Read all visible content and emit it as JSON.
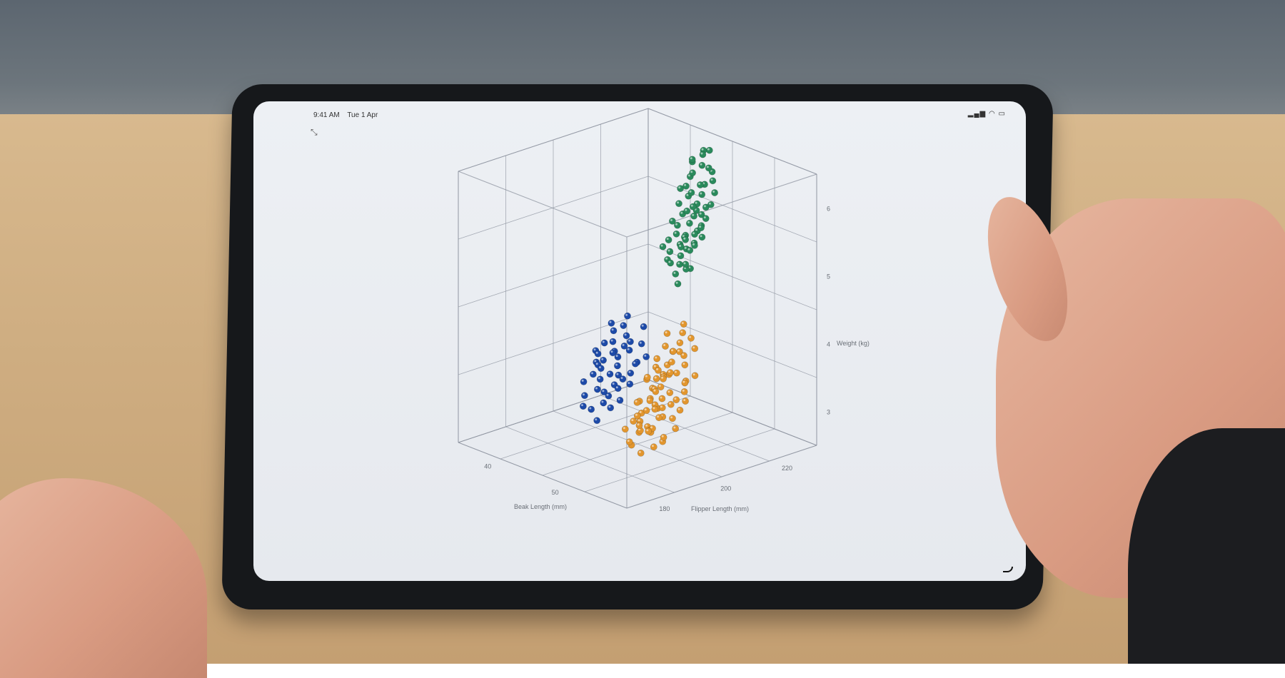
{
  "status_bar": {
    "time": "9:41 AM",
    "date": "Tue 1 Apr"
  },
  "icons": {
    "collapse": "collapse-arrows-icon",
    "signal": "signal-icon",
    "wifi": "wifi-icon",
    "battery": "battery-icon"
  },
  "colors": {
    "screen": "#eceff3",
    "grid": "#8e94a0",
    "species_a": "#e2962e",
    "species_b": "#2a8a5c",
    "species_c": "#1d4aa8"
  },
  "chart_data": {
    "type": "scatter",
    "projection": "3d",
    "axes": {
      "x": {
        "label": "Beak Length (mm)",
        "ticks": [
          "40",
          "50"
        ],
        "range": [
          35,
          60
        ]
      },
      "z": {
        "label": "Flipper Length (mm)",
        "ticks": [
          "180",
          "200",
          "220"
        ],
        "range": [
          170,
          232
        ]
      },
      "y": {
        "label": "Weight (kg)",
        "ticks": [
          "3",
          "4",
          "5",
          "6"
        ],
        "range": [
          2.5,
          6.5
        ]
      }
    },
    "grid": true,
    "series": [
      {
        "color": "#e2962e",
        "points": [
          [
            37.2,
            191,
            3.7
          ],
          [
            38.1,
            186,
            3.6
          ],
          [
            39.5,
            190,
            3.5
          ],
          [
            36.8,
            181,
            3.4
          ],
          [
            40.1,
            195,
            3.9
          ],
          [
            38.9,
            188,
            3.8
          ],
          [
            41.2,
            192,
            3.7
          ],
          [
            37.8,
            184,
            3.3
          ],
          [
            39.0,
            193,
            4.0
          ],
          [
            42.0,
            198,
            4.2
          ],
          [
            36.5,
            185,
            3.2
          ],
          [
            40.6,
            190,
            3.6
          ],
          [
            38.2,
            196,
            4.1
          ],
          [
            39.8,
            187,
            3.5
          ],
          [
            41.5,
            194,
            3.8
          ],
          [
            37.0,
            179,
            3.1
          ],
          [
            40.3,
            199,
            4.3
          ],
          [
            38.6,
            182,
            3.4
          ],
          [
            42.5,
            196,
            3.9
          ],
          [
            39.2,
            186,
            3.3
          ],
          [
            36.2,
            190,
            3.6
          ],
          [
            41.0,
            188,
            3.4
          ],
          [
            37.6,
            195,
            3.9
          ],
          [
            40.8,
            201,
            4.4
          ],
          [
            38.4,
            189,
            3.7
          ],
          [
            39.6,
            192,
            3.9
          ],
          [
            35.9,
            184,
            3.3
          ],
          [
            42.2,
            190,
            3.5
          ],
          [
            37.4,
            187,
            3.5
          ],
          [
            40.0,
            185,
            3.2
          ],
          [
            38.8,
            197,
            4.2
          ],
          [
            41.8,
            200,
            4.1
          ],
          [
            36.9,
            193,
            3.8
          ],
          [
            39.3,
            181,
            3.1
          ],
          [
            40.5,
            194,
            3.9
          ],
          [
            38.0,
            191,
            3.6
          ],
          [
            42.8,
            197,
            4.0
          ],
          [
            37.1,
            183,
            3.4
          ],
          [
            39.9,
            198,
            4.2
          ],
          [
            41.3,
            186,
            3.3
          ],
          [
            38.5,
            194,
            4.0
          ],
          [
            36.4,
            188,
            3.5
          ],
          [
            40.9,
            192,
            3.7
          ],
          [
            39.4,
            184,
            3.4
          ],
          [
            37.7,
            190,
            3.8
          ],
          [
            43.1,
            201,
            4.3
          ],
          [
            38.3,
            185,
            3.3
          ],
          [
            40.2,
            189,
            3.6
          ],
          [
            41.7,
            195,
            3.9
          ],
          [
            36.7,
            196,
            4.0
          ],
          [
            39.1,
            200,
            4.4
          ],
          [
            38.7,
            179,
            3.2
          ],
          [
            42.4,
            193,
            3.8
          ],
          [
            37.3,
            194,
            3.9
          ],
          [
            40.7,
            186,
            3.4
          ],
          [
            39.7,
            195,
            4.1
          ],
          [
            35.5,
            187,
            3.4
          ],
          [
            41.1,
            202,
            4.5
          ],
          [
            38.9,
            183,
            3.3
          ],
          [
            40.4,
            197,
            4.2
          ],
          [
            37.9,
            188,
            3.6
          ],
          [
            42.1,
            189,
            3.5
          ],
          [
            36.3,
            192,
            3.7
          ],
          [
            39.5,
            191,
            3.8
          ],
          [
            41.6,
            184,
            3.2
          ],
          [
            38.1,
            199,
            4.3
          ],
          [
            40.0,
            193,
            3.9
          ],
          [
            37.5,
            186,
            3.5
          ],
          [
            43.4,
            195,
            3.7
          ],
          [
            39.0,
            188,
            3.6
          ],
          [
            36.0,
            181,
            3.2
          ],
          [
            40.8,
            196,
            4.0
          ]
        ]
      },
      {
        "color": "#2a8a5c",
        "points": [
          [
            46.1,
            215,
            5.2
          ],
          [
            47.5,
            218,
            5.5
          ],
          [
            48.2,
            222,
            5.7
          ],
          [
            45.3,
            212,
            5.0
          ],
          [
            49.1,
            225,
            5.9
          ],
          [
            46.8,
            219,
            5.4
          ],
          [
            50.2,
            228,
            6.1
          ],
          [
            47.0,
            214,
            5.1
          ],
          [
            48.8,
            220,
            5.6
          ],
          [
            45.9,
            216,
            5.3
          ],
          [
            51.0,
            230,
            6.2
          ],
          [
            46.4,
            211,
            4.9
          ],
          [
            49.5,
            223,
            5.8
          ],
          [
            47.8,
            217,
            5.3
          ],
          [
            50.7,
            226,
            6.0
          ],
          [
            45.1,
            213,
            5.0
          ],
          [
            48.4,
            224,
            5.8
          ],
          [
            46.6,
            215,
            5.2
          ],
          [
            49.9,
            221,
            5.5
          ],
          [
            47.3,
            219,
            5.6
          ],
          [
            52.1,
            229,
            6.1
          ],
          [
            45.6,
            210,
            4.8
          ],
          [
            48.0,
            216,
            5.2
          ],
          [
            50.4,
            224,
            5.7
          ],
          [
            46.9,
            222,
            5.7
          ],
          [
            49.3,
            218,
            5.4
          ],
          [
            47.6,
            212,
            5.0
          ],
          [
            51.5,
            227,
            5.9
          ],
          [
            45.8,
            218,
            5.5
          ],
          [
            48.6,
            214,
            5.1
          ],
          [
            50.0,
            230,
            6.3
          ],
          [
            46.3,
            217,
            5.4
          ],
          [
            49.7,
            216,
            5.2
          ],
          [
            47.1,
            221,
            5.6
          ],
          [
            53.0,
            231,
            6.0
          ],
          [
            45.4,
            215,
            5.3
          ],
          [
            48.9,
            226,
            5.9
          ],
          [
            46.7,
            213,
            5.0
          ],
          [
            50.9,
            222,
            5.6
          ],
          [
            47.9,
            220,
            5.7
          ],
          [
            44.9,
            211,
            5.1
          ],
          [
            49.2,
            228,
            6.1
          ],
          [
            46.2,
            219,
            5.5
          ],
          [
            48.1,
            218,
            5.3
          ],
          [
            51.2,
            225,
            5.8
          ],
          [
            47.4,
            215,
            5.2
          ],
          [
            50.5,
            219,
            5.4
          ],
          [
            45.7,
            221,
            5.8
          ],
          [
            48.5,
            213,
            5.0
          ],
          [
            46.5,
            224,
            5.9
          ],
          [
            49.6,
            230,
            6.0
          ],
          [
            47.2,
            216,
            5.3
          ],
          [
            52.5,
            226,
            5.7
          ],
          [
            45.2,
            217,
            5.4
          ],
          [
            48.3,
            222,
            5.6
          ],
          [
            50.1,
            215,
            5.1
          ],
          [
            46.0,
            220,
            5.6
          ],
          [
            49.0,
            217,
            5.3
          ],
          [
            47.7,
            226,
            6.0
          ],
          [
            51.8,
            232,
            6.2
          ]
        ]
      },
      {
        "color": "#1d4aa8",
        "points": [
          [
            46.5,
            194,
            3.6
          ],
          [
            48.2,
            196,
            3.7
          ],
          [
            49.8,
            198,
            3.8
          ],
          [
            45.1,
            190,
            3.4
          ],
          [
            50.7,
            200,
            3.9
          ],
          [
            47.3,
            193,
            3.5
          ],
          [
            51.5,
            202,
            4.0
          ],
          [
            46.0,
            197,
            3.8
          ],
          [
            48.9,
            191,
            3.4
          ],
          [
            50.2,
            195,
            3.6
          ],
          [
            45.6,
            188,
            3.3
          ],
          [
            52.0,
            198,
            3.7
          ],
          [
            47.8,
            199,
            3.9
          ],
          [
            49.4,
            193,
            3.5
          ],
          [
            46.9,
            201,
            4.0
          ],
          [
            51.1,
            196,
            3.6
          ],
          [
            48.0,
            187,
            3.2
          ],
          [
            50.5,
            203,
            4.1
          ],
          [
            45.8,
            195,
            3.7
          ],
          [
            49.0,
            200,
            3.9
          ],
          [
            47.1,
            189,
            3.3
          ],
          [
            52.4,
            201,
            3.8
          ],
          [
            46.3,
            192,
            3.5
          ],
          [
            50.9,
            194,
            3.5
          ],
          [
            48.6,
            197,
            3.8
          ],
          [
            47.5,
            203,
            4.2
          ],
          [
            49.9,
            189,
            3.3
          ],
          [
            45.3,
            199,
            3.9
          ],
          [
            51.8,
            197,
            3.6
          ],
          [
            48.4,
            194,
            3.6
          ],
          [
            53.2,
            205,
            4.0
          ],
          [
            46.7,
            186,
            3.1
          ],
          [
            50.0,
            199,
            3.8
          ],
          [
            47.9,
            191,
            3.4
          ],
          [
            49.6,
            202,
            4.0
          ],
          [
            45.0,
            193,
            3.6
          ],
          [
            51.4,
            192,
            3.4
          ],
          [
            48.1,
            200,
            4.0
          ],
          [
            46.2,
            198,
            3.8
          ],
          [
            50.3,
            196,
            3.7
          ],
          [
            47.6,
            195,
            3.6
          ],
          [
            52.8,
            199,
            3.7
          ],
          [
            49.2,
            187,
            3.2
          ],
          [
            46.8,
            190,
            3.4
          ],
          [
            50.8,
            205,
            4.2
          ]
        ]
      }
    ]
  }
}
